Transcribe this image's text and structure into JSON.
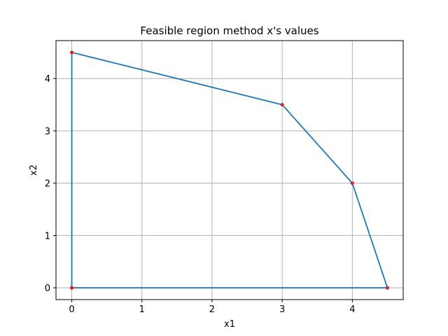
{
  "chart_data": {
    "type": "line",
    "title": "Feasible region method x's values",
    "xlabel": "x1",
    "ylabel": "x2",
    "xlim": [
      -0.225,
      4.725
    ],
    "ylim": [
      -0.225,
      4.725
    ],
    "xticks": [
      "0",
      "1",
      "2",
      "3",
      "4"
    ],
    "yticks": [
      "0",
      "1",
      "2",
      "3",
      "4"
    ],
    "grid": true,
    "series": [
      {
        "x": [
          0,
          0,
          3,
          4,
          4.5,
          0
        ],
        "y": [
          0,
          4.5,
          3.5,
          2,
          0,
          0
        ],
        "color": "#1f77b4",
        "marker_color": "#d62728"
      }
    ]
  }
}
